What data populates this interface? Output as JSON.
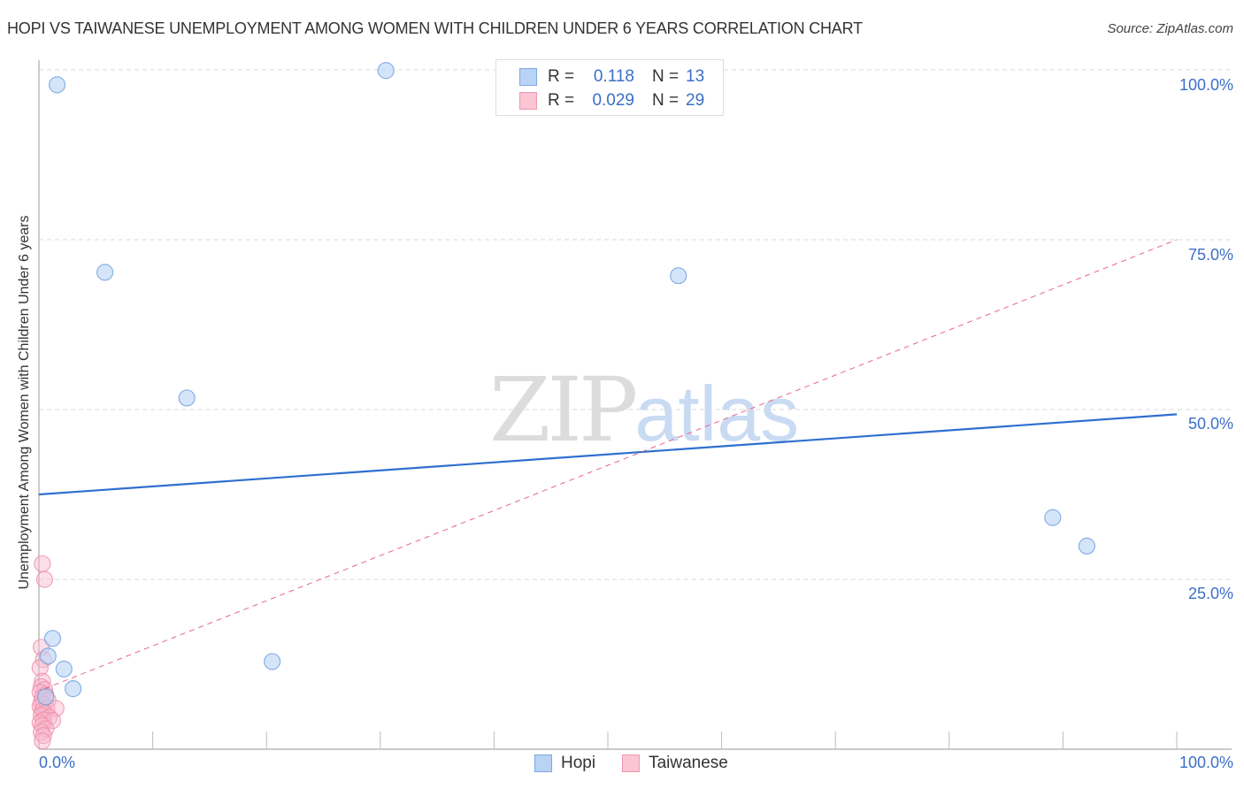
{
  "header": {
    "title": "HOPI VS TAIWANESE UNEMPLOYMENT AMONG WOMEN WITH CHILDREN UNDER 6 YEARS CORRELATION CHART",
    "source": "Source: ZipAtlas.com"
  },
  "watermark": {
    "part1": "ZIP",
    "part2": "atlas"
  },
  "legend": {
    "rows": [
      {
        "series": "Hopi",
        "r_label": "R =",
        "r_value": "0.118",
        "n_label": "N =",
        "n_value": "13",
        "color": "#b9d3f5",
        "border": "#7aa7e0"
      },
      {
        "series": "Taiwanese",
        "r_label": "R =",
        "r_value": "0.029",
        "n_label": "N =",
        "n_value": "29",
        "color": "#fbc5d4",
        "border": "#ef98b2"
      }
    ]
  },
  "bottom_legend": {
    "items": [
      "Hopi",
      "Taiwanese"
    ]
  },
  "axes": {
    "y_label": "Unemployment Among Women with Children Under 6 years",
    "y_ticks": [
      "100.0%",
      "75.0%",
      "50.0%",
      "25.0%"
    ],
    "x_ticks": [
      "0.0%",
      "100.0%"
    ]
  },
  "colors": {
    "hopi_fill": "#b9d3f5",
    "hopi_stroke": "#6f9fe0",
    "hopi_trend": "#2f6fcf",
    "taiwanese_fill": "#f9b9cb",
    "taiwanese_stroke": "#ee8eac",
    "taiwanese_trend": "#e7648a",
    "axis_text": "#3b6fc8",
    "grid": "#d9d9d9"
  },
  "chart_data": {
    "type": "scatter",
    "title": "HOPI VS TAIWANESE UNEMPLOYMENT AMONG WOMEN WITH CHILDREN UNDER 6 YEARS CORRELATION CHART",
    "xlabel": "",
    "ylabel": "Unemployment Among Women with Children Under 6 years",
    "xlim": [
      0,
      100
    ],
    "ylim": [
      0,
      100
    ],
    "x_ticks": [
      "0.0%",
      "100.0%"
    ],
    "y_ticks": [
      "25.0%",
      "50.0%",
      "75.0%",
      "100.0%"
    ],
    "grid": true,
    "legend_position": "bottom",
    "series": [
      {
        "name": "Hopi",
        "R": 0.118,
        "N": 13,
        "points": [
          [
            1.6,
            97.8
          ],
          [
            30.5,
            99.9
          ],
          [
            5.8,
            70.2
          ],
          [
            56.2,
            69.7
          ],
          [
            13.0,
            51.7
          ],
          [
            89.1,
            34.1
          ],
          [
            92.1,
            29.9
          ],
          [
            20.5,
            12.9
          ],
          [
            1.2,
            16.3
          ],
          [
            0.8,
            13.7
          ],
          [
            2.2,
            11.8
          ],
          [
            3.0,
            8.9
          ],
          [
            0.6,
            7.7
          ]
        ],
        "trend": {
          "x": [
            0,
            100
          ],
          "y": [
            37.5,
            49.3
          ],
          "style": "solid"
        }
      },
      {
        "name": "Taiwanese",
        "R": 0.029,
        "N": 29,
        "points": [
          [
            0.3,
            27.3
          ],
          [
            0.5,
            25.0
          ],
          [
            0.2,
            15.0
          ],
          [
            0.4,
            13.2
          ],
          [
            0.1,
            12.0
          ],
          [
            0.3,
            10.0
          ],
          [
            0.2,
            9.2
          ],
          [
            0.5,
            8.8
          ],
          [
            0.1,
            8.4
          ],
          [
            0.6,
            8.0
          ],
          [
            0.3,
            7.6
          ],
          [
            0.8,
            7.2
          ],
          [
            0.2,
            6.9
          ],
          [
            0.4,
            6.6
          ],
          [
            0.1,
            6.3
          ],
          [
            0.7,
            6.0
          ],
          [
            1.5,
            6.0
          ],
          [
            0.3,
            5.7
          ],
          [
            0.5,
            5.3
          ],
          [
            0.2,
            5.0
          ],
          [
            0.9,
            4.7
          ],
          [
            0.4,
            4.3
          ],
          [
            1.2,
            4.2
          ],
          [
            0.1,
            3.9
          ],
          [
            0.3,
            3.5
          ],
          [
            0.6,
            3.0
          ],
          [
            0.2,
            2.5
          ],
          [
            0.4,
            2.0
          ],
          [
            0.3,
            1.2
          ]
        ],
        "trend": {
          "x": [
            0.5,
            100
          ],
          "y": [
            8.9,
            75.0
          ],
          "style": "dashed"
        }
      }
    ]
  }
}
